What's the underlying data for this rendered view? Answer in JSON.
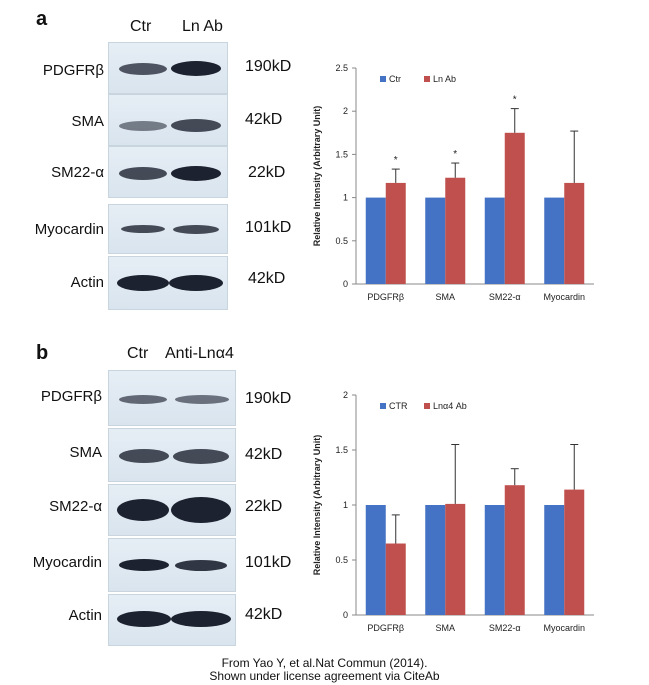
{
  "panel_a": {
    "letter": "a",
    "lanes": [
      "Ctr",
      "Ln Ab"
    ],
    "blots": [
      {
        "protein": "PDGFRβ",
        "kd": "190kD"
      },
      {
        "protein": "SMA",
        "kd": "42kD"
      },
      {
        "protein": "SM22-α",
        "kd": "22kD"
      },
      {
        "protein": "Myocardin",
        "kd": "101kD"
      },
      {
        "protein": "Actin",
        "kd": "42kD"
      }
    ]
  },
  "panel_b": {
    "letter": "b",
    "lanes": [
      "Ctr",
      "Anti-Lnα4"
    ],
    "blots": [
      {
        "protein": "PDGFRβ",
        "kd": "190kD"
      },
      {
        "protein": "SMA",
        "kd": "42kD"
      },
      {
        "protein": "SM22-α",
        "kd": "22kD"
      },
      {
        "protein": "Myocardin",
        "kd": "101kD"
      },
      {
        "protein": "Actin",
        "kd": "42kD"
      }
    ]
  },
  "chart_data": [
    {
      "type": "bar",
      "title": "",
      "xlabel": "",
      "ylabel": "Relative Intensity (Arbitrary Unit)",
      "categories": [
        "PDGFRβ",
        "SMA",
        "SM22-α",
        "Myocardin"
      ],
      "ylim": [
        0,
        2.5
      ],
      "yticks": [
        "0",
        "0.5",
        "1",
        "1.5",
        "2",
        "2.5"
      ],
      "legend_position": "top-left",
      "grid": false,
      "series": [
        {
          "name": "Ctr",
          "color": "#4472c4",
          "values": [
            1,
            1,
            1,
            1
          ],
          "errors": [
            0,
            0,
            0,
            0
          ]
        },
        {
          "name": "Ln Ab",
          "color": "#c0504d",
          "values": [
            1.17,
            1.23,
            1.75,
            1.17
          ],
          "errors": [
            0.16,
            0.17,
            0.28,
            0.6
          ]
        }
      ],
      "annotations": [
        "*",
        "*",
        "*",
        ""
      ]
    },
    {
      "type": "bar",
      "title": "",
      "xlabel": "",
      "ylabel": "Relative Intensity (Arbitrary Unit)",
      "categories": [
        "PDGFRβ",
        "SMA",
        "SM22-α",
        "Myocardin"
      ],
      "ylim": [
        0,
        2
      ],
      "yticks": [
        "0",
        "0.5",
        "1",
        "1.5",
        "2"
      ],
      "legend_position": "top-left",
      "grid": false,
      "series": [
        {
          "name": "CTR",
          "color": "#4472c4",
          "values": [
            1,
            1,
            1,
            1
          ],
          "errors": [
            0,
            0,
            0,
            0
          ]
        },
        {
          "name": "Lnα4 Ab",
          "color": "#c0504d",
          "values": [
            0.65,
            1.01,
            1.18,
            1.14
          ],
          "errors": [
            0.26,
            0.54,
            0.15,
            0.41
          ]
        }
      ],
      "annotations": [
        "",
        "",
        "",
        ""
      ]
    }
  ],
  "caption": {
    "line1": "From Yao Y, et al.Nat Commun (2014).",
    "line2": "Shown under license agreement via CiteAb"
  }
}
